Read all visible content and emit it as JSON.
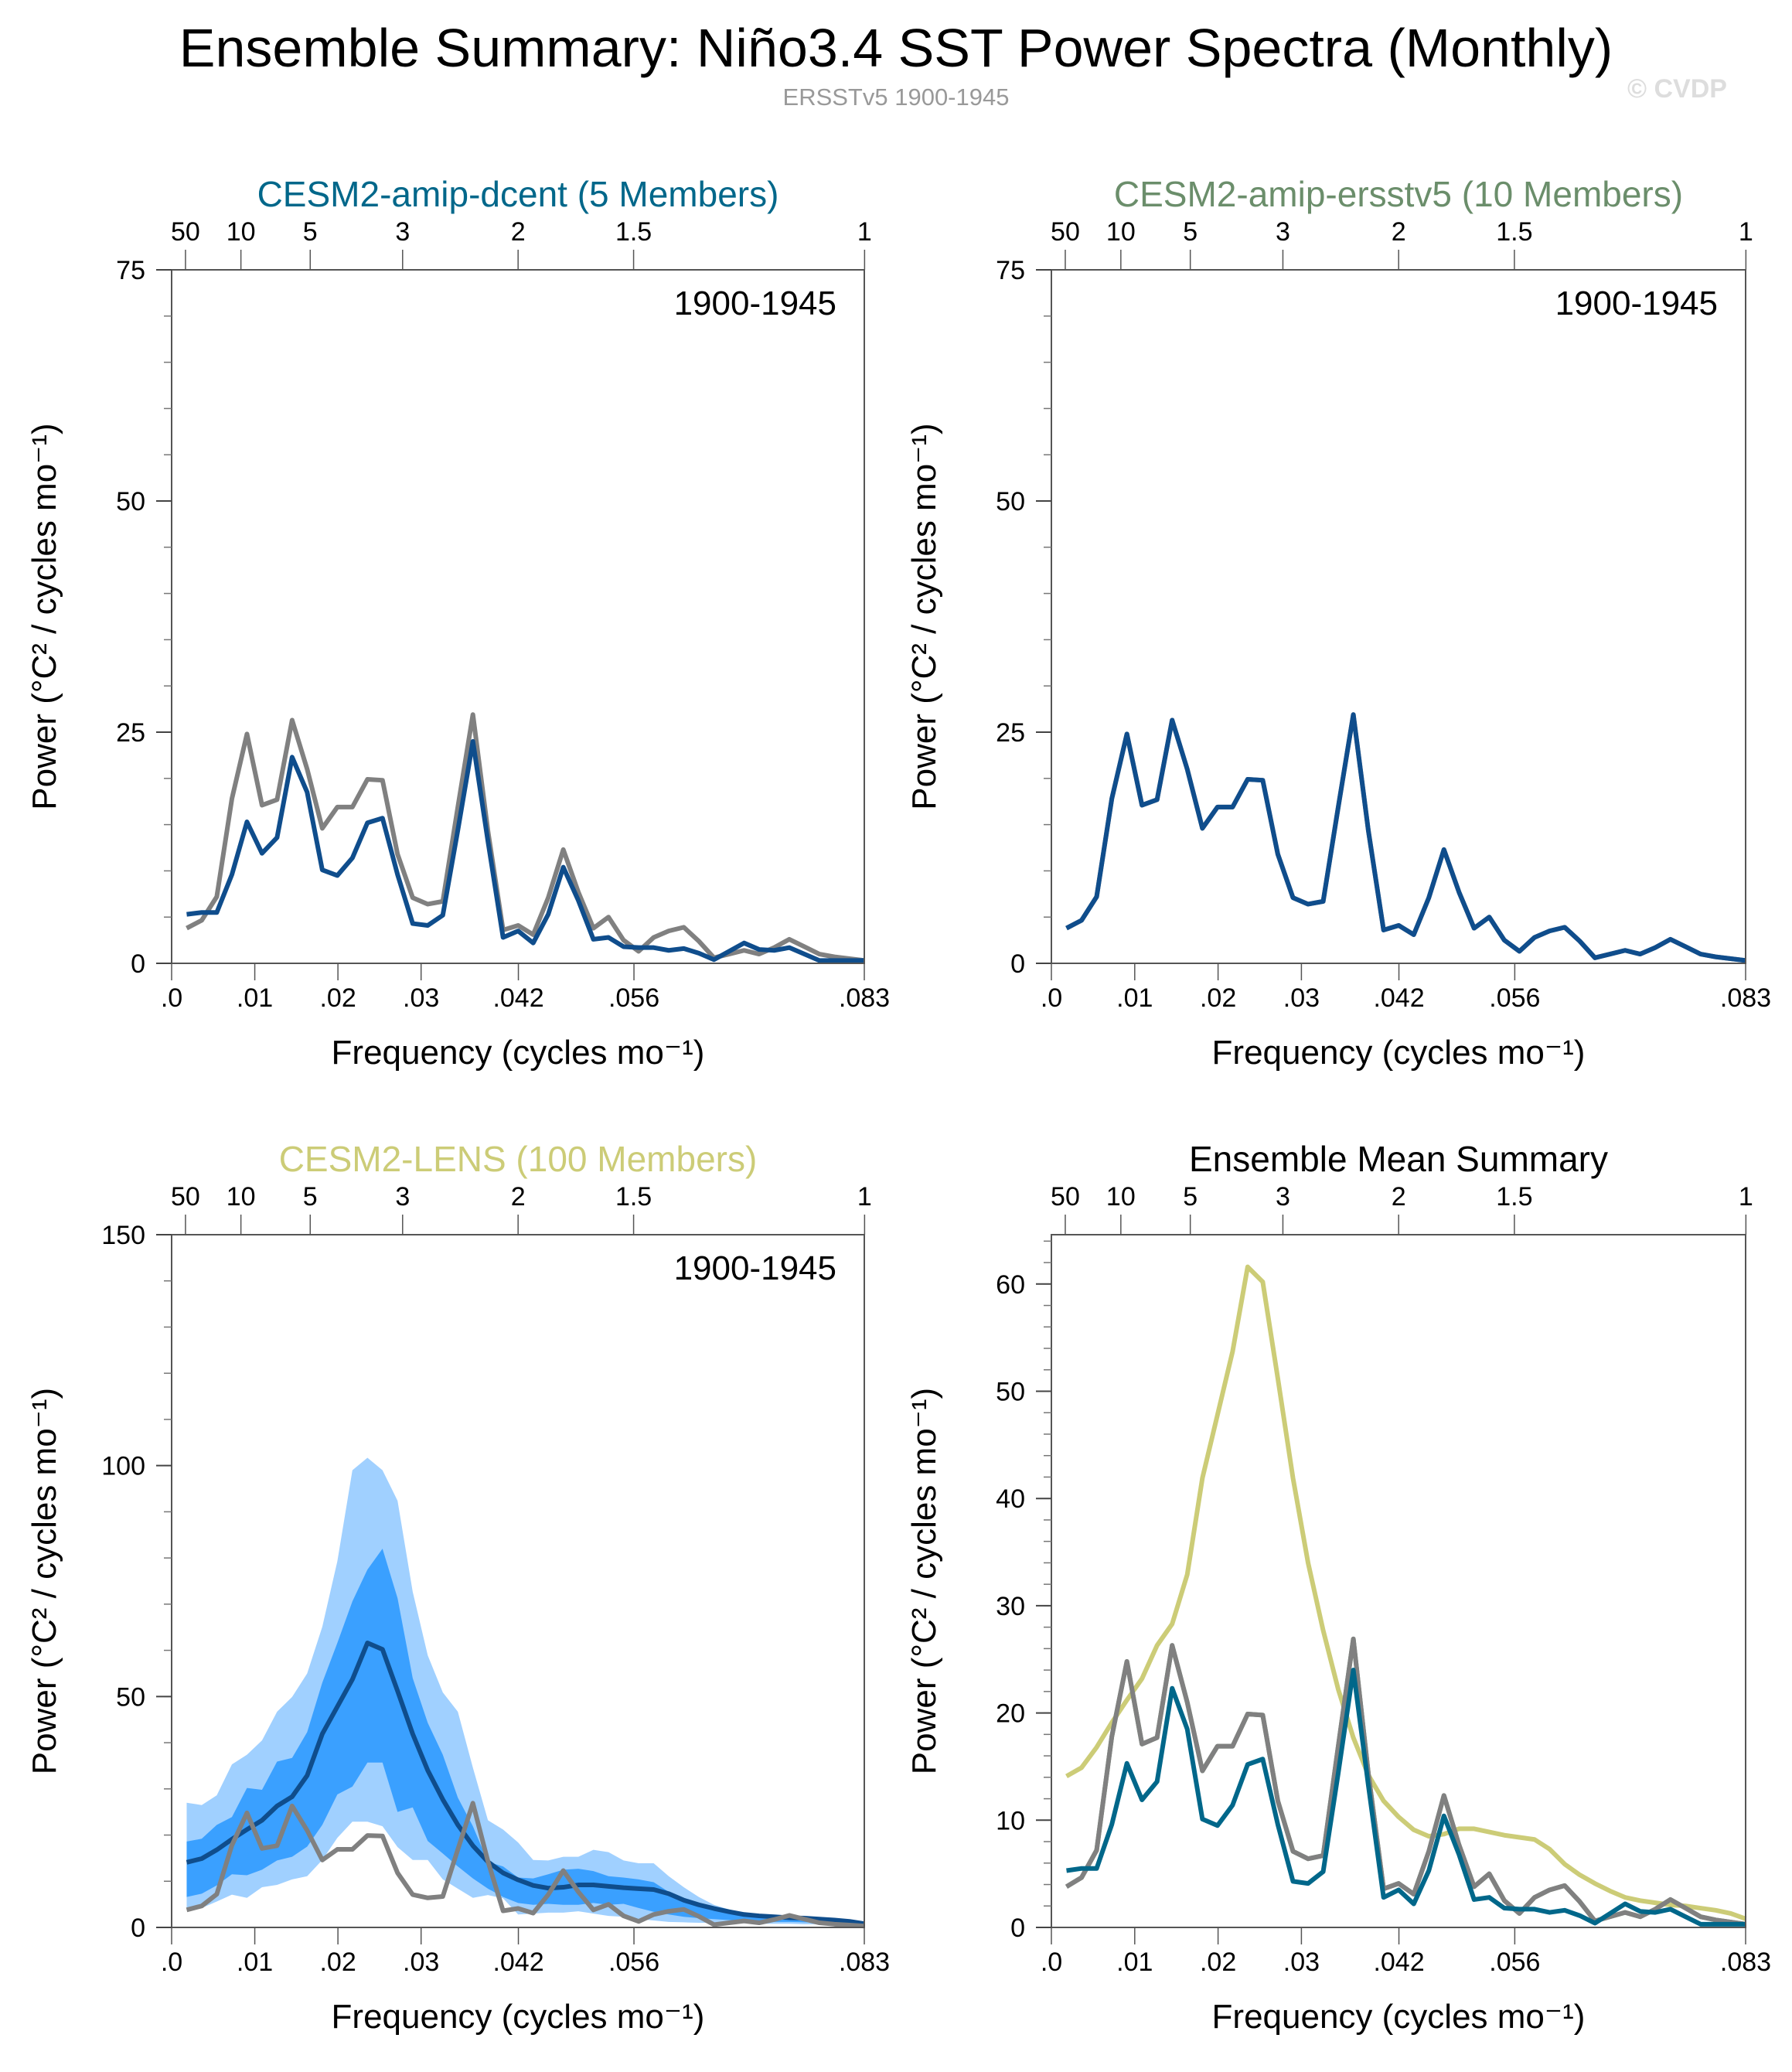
{
  "title": "Ensemble Summary: Niño3.4 SST Power Spectra (Monthly)",
  "subtitle": "ERSSTv5 1900-1945",
  "watermark": "© CVDP",
  "colors": {
    "observations": "#808080",
    "ensemble_mean": "#0f4d8c",
    "band_outer": "#a0d0ff",
    "band_inner": "#3aa0ff",
    "dcent": "#00678a",
    "ersstv5": "#6b8e6b",
    "lens": "#cccc77"
  },
  "chart_data": [
    {
      "type": "line",
      "title": "CESM2-amip-dcent (5 Members)",
      "title_color": "#00678a",
      "period_label": "1900-1945",
      "xlabel": "Frequency (cycles mo⁻¹)",
      "ylabel": "Power (°C² / cycles mo⁻¹)",
      "xlim": [
        0,
        0.0833
      ],
      "ylim": [
        0,
        75
      ],
      "y_ticks": [
        "0",
        "25",
        "50",
        "75"
      ],
      "y_minor_step": 5,
      "grid": false,
      "series": [
        {
          "role": "observations",
          "color": "#808080",
          "values": "@obs"
        },
        {
          "role": "ensemble_mean",
          "color": "#0f4d8c",
          "values": "@dcent"
        }
      ]
    },
    {
      "type": "line",
      "title": "CESM2-amip-ersstv5 (10 Members)",
      "title_color": "#6b8e6b",
      "period_label": "1900-1945",
      "xlabel": "Frequency (cycles mo⁻¹)",
      "ylabel": "Power (°C² / cycles mo⁻¹)",
      "xlim": [
        0,
        0.0833
      ],
      "ylim": [
        0,
        75
      ],
      "y_ticks": [
        "0",
        "25",
        "50",
        "75"
      ],
      "y_minor_step": 5,
      "grid": false,
      "series": [
        {
          "role": "observations",
          "color": "#808080",
          "values": "@obs"
        },
        {
          "role": "ensemble_mean",
          "color": "#0f4d8c",
          "values": "@obs"
        }
      ]
    },
    {
      "type": "area",
      "title": "CESM2-LENS (100 Members)",
      "title_color": "#cccc77",
      "period_label": "1900-1945",
      "xlabel": "Frequency (cycles mo⁻¹)",
      "ylabel": "Power (°C² / cycles mo⁻¹)",
      "xlim": [
        0,
        0.0833
      ],
      "ylim": [
        0,
        150
      ],
      "y_ticks": [
        "0",
        "50",
        "100",
        "150"
      ],
      "y_minor_step": 10,
      "grid": false,
      "bands": [
        {
          "role": "outer_range",
          "color": "#a0d0ff",
          "upper": [
            27.0,
            26.5,
            28.6,
            35.3,
            37.4,
            40.5,
            46.7,
            49.9,
            55.0,
            65.1,
            79.3,
            99.0,
            101.7,
            99.0,
            92.4,
            72.7,
            58.9,
            50.9,
            46.7,
            34.6,
            23.2,
            21.2,
            18.4,
            14.6,
            14.5,
            15.3,
            15.3,
            16.8,
            16.3,
            14.5,
            13.9,
            13.9,
            11.1,
            8.7,
            6.6,
            4.9,
            3.9,
            3.2,
            2.8,
            2.5,
            2.3,
            2.0,
            1.8,
            1.6,
            1.3,
            0.9
          ],
          "lower": [
            3.9,
            4.2,
            5.6,
            7.1,
            6.4,
            8.7,
            9.2,
            10.4,
            11.1,
            14.6,
            19.4,
            22.9,
            22.9,
            21.9,
            17.4,
            14.6,
            14.6,
            10.4,
            8.4,
            6.4,
            7.0,
            6.3,
            2.8,
            3.0,
            3.2,
            3.2,
            3.5,
            3.0,
            2.5,
            2.3,
            1.8,
            1.5,
            1.2,
            1.1,
            1.0,
            1.0,
            0.9,
            0.9,
            0.8,
            0.8,
            0.8,
            0.7,
            0.7,
            0.6,
            0.6,
            0.5
          ]
        },
        {
          "role": "inner_range",
          "color": "#3aa0ff",
          "upper": [
            18.6,
            19.2,
            22.2,
            23.9,
            30.2,
            29.8,
            35.9,
            36.7,
            42.3,
            53.0,
            61.6,
            70.6,
            77.5,
            82.0,
            71.3,
            54.0,
            44.3,
            37.4,
            28.1,
            21.9,
            14.2,
            13.2,
            10.8,
            10.6,
            11.5,
            12.5,
            12.7,
            12.2,
            11.1,
            10.8,
            10.4,
            9.8,
            7.7,
            6.3,
            5.3,
            4.2,
            3.5,
            3.0,
            2.7,
            2.5,
            2.3,
            2.0,
            1.8,
            1.6,
            1.3,
            0.9
          ],
          "lower": [
            6.6,
            7.3,
            9.1,
            11.5,
            11.3,
            12.5,
            14.5,
            15.3,
            17.5,
            22.2,
            28.8,
            30.5,
            35.7,
            35.7,
            25.0,
            26.0,
            18.7,
            16.0,
            13.2,
            10.6,
            8.4,
            6.6,
            5.3,
            4.9,
            5.1,
            4.9,
            4.9,
            5.3,
            4.9,
            5.1,
            4.2,
            3.4,
            2.8,
            2.3,
            2.0,
            1.8,
            1.6,
            1.5,
            1.3,
            1.2,
            1.2,
            1.1,
            1.0,
            1.0,
            0.9,
            0.6
          ]
        }
      ],
      "series": [
        {
          "role": "ensemble_mean",
          "color": "#0f4d8c",
          "values": "@lens"
        },
        {
          "role": "observations",
          "color": "#808080",
          "values": "@obs"
        }
      ]
    },
    {
      "type": "line",
      "title": "Ensemble Mean Summary",
      "title_color": "#000000",
      "period_label": "",
      "xlabel": "Frequency (cycles mo⁻¹)",
      "ylabel": "Power (°C² / cycles mo⁻¹)",
      "xlim": [
        0,
        0.0833
      ],
      "ylim": [
        0,
        64.6
      ],
      "y_ticks": [
        "0",
        "10",
        "20",
        "30",
        "40",
        "50",
        "60"
      ],
      "y_minor_step": 2,
      "grid": false,
      "series": [
        {
          "role": "CESM2-LENS",
          "color": "#cccc77",
          "values": "@lens"
        },
        {
          "role": "CESM2-amip-ersstv5",
          "color": "#6b8e6b",
          "values": "@obs"
        },
        {
          "role": "observations",
          "color": "#808080",
          "values": "@obs"
        },
        {
          "role": "CESM2-amip-dcent",
          "color": "#00678a",
          "values": "@dcent"
        }
      ]
    }
  ],
  "x_tick_labels": [
    {
      "value": 0,
      "label": ".0"
    },
    {
      "value": 0.01,
      "label": ".01"
    },
    {
      "value": 0.02,
      "label": ".02"
    },
    {
      "value": 0.03,
      "label": ".03"
    },
    {
      "value": 0.0417,
      "label": ".042"
    },
    {
      "value": 0.0556,
      "label": ".056"
    },
    {
      "value": 0.0833,
      "label": ".083"
    }
  ],
  "period_tick_labels": [
    {
      "years": 50,
      "label": "50"
    },
    {
      "years": 10,
      "label": "10"
    },
    {
      "years": 5,
      "label": "5"
    },
    {
      "years": 3,
      "label": "3"
    },
    {
      "years": 2,
      "label": "2"
    },
    {
      "years": 1.5,
      "label": "1.5"
    },
    {
      "years": 1,
      "label": "1"
    }
  ],
  "frequencies": [
    0.00181,
    0.00362,
    0.00543,
    0.00725,
    0.00906,
    0.01087,
    0.01268,
    0.01449,
    0.0163,
    0.01812,
    0.01993,
    0.02174,
    0.02355,
    0.02536,
    0.02717,
    0.02899,
    0.0308,
    0.03261,
    0.03442,
    0.03623,
    0.03804,
    0.03986,
    0.04167,
    0.04348,
    0.04529,
    0.0471,
    0.04891,
    0.05072,
    0.05254,
    0.05435,
    0.05616,
    0.05797,
    0.05978,
    0.06159,
    0.0634,
    0.06522,
    0.06703,
    0.06884,
    0.07065,
    0.07246,
    0.07428,
    0.07609,
    0.0779,
    0.07971,
    0.08152,
    0.08333
  ],
  "values": {
    "obs": [
      3.8,
      4.65,
      7.2,
      17.8,
      24.8,
      17.1,
      17.7,
      26.3,
      21.0,
      14.6,
      16.9,
      16.9,
      19.9,
      19.8,
      11.8,
      7.1,
      6.4,
      6.7,
      16.9,
      26.9,
      14.3,
      3.6,
      4.1,
      3.1,
      7.1,
      12.3,
      7.7,
      3.8,
      5.0,
      2.5,
      1.3,
      2.8,
      3.5,
      3.9,
      2.4,
      0.6,
      1.0,
      1.4,
      1.0,
      1.7,
      2.6,
      1.8,
      1.0,
      0.7,
      0.5,
      0.3
    ],
    "dcent": [
      5.3,
      5.5,
      5.5,
      9.6,
      15.3,
      11.9,
      13.6,
      22.3,
      18.5,
      10.1,
      9.5,
      11.4,
      15.2,
      15.7,
      9.6,
      4.3,
      4.1,
      5.2,
      14.4,
      24.0,
      13.2,
      2.8,
      3.5,
      2.2,
      5.3,
      10.4,
      6.8,
      2.6,
      2.8,
      1.8,
      1.7,
      1.7,
      1.4,
      1.6,
      1.1,
      0.4,
      1.3,
      2.2,
      1.5,
      1.4,
      1.7,
      1.0,
      0.3,
      0.3,
      0.3,
      0.3
    ],
    "lens": [
      14.1,
      14.9,
      16.8,
      19.1,
      21.2,
      23.2,
      26.3,
      28.3,
      32.9,
      41.9,
      47.8,
      53.7,
      61.6,
      60.2,
      51.2,
      41.9,
      34.0,
      27.7,
      22.2,
      17.7,
      14.2,
      11.8,
      10.3,
      9.1,
      8.5,
      8.7,
      9.2,
      9.2,
      8.9,
      8.6,
      8.4,
      8.2,
      7.3,
      5.9,
      4.9,
      4.1,
      3.4,
      2.8,
      2.5,
      2.3,
      2.1,
      2.0,
      1.8,
      1.6,
      1.3,
      0.8
    ]
  }
}
